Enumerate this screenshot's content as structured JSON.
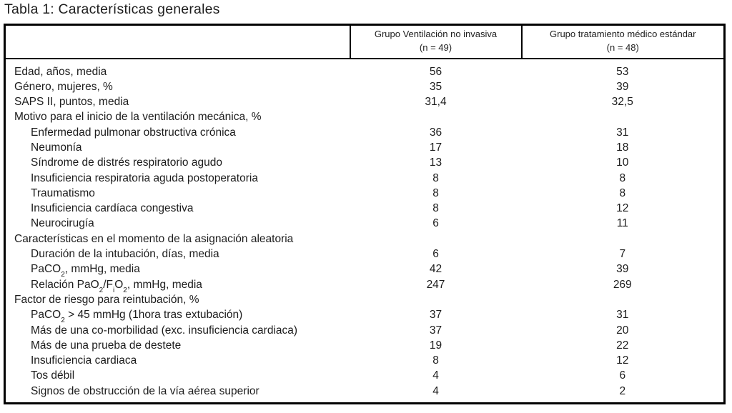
{
  "title": "Tabla 1: Características generales",
  "colors": {
    "background": "#ffffff",
    "text": "#1c1c1c",
    "border": "#000000"
  },
  "table": {
    "columns": [
      {
        "line1": "Grupo Ventilación no invasiva",
        "line2": "(n = 49)"
      },
      {
        "line1": "Grupo tratamiento médico estándar",
        "line2": "(n = 48)"
      }
    ],
    "rows": [
      {
        "label": "Edad, años, media",
        "indent": 0,
        "values": [
          "56",
          "53"
        ]
      },
      {
        "label": "Género, mujeres, %",
        "indent": 0,
        "values": [
          "35",
          "39"
        ]
      },
      {
        "label": "SAPS II, puntos, media",
        "indent": 0,
        "values": [
          "31,4",
          "32,5"
        ]
      },
      {
        "label": "Motivo para el inicio de la ventilación mecánica, %",
        "indent": 0,
        "values": [
          "",
          ""
        ]
      },
      {
        "label": "Enfermedad pulmonar obstructiva crónica",
        "indent": 1,
        "values": [
          "36",
          "31"
        ]
      },
      {
        "label": "Neumonía",
        "indent": 1,
        "values": [
          "17",
          "18"
        ]
      },
      {
        "label": "Síndrome de distrés respiratorio agudo",
        "indent": 1,
        "values": [
          "13",
          "10"
        ]
      },
      {
        "label": "Insuficiencia respiratoria aguda postoperatoria",
        "indent": 1,
        "values": [
          "8",
          "8"
        ]
      },
      {
        "label": "Traumatismo",
        "indent": 1,
        "values": [
          "8",
          "8"
        ]
      },
      {
        "label": "Insuficiencia cardíaca congestiva",
        "indent": 1,
        "values": [
          "8",
          "12"
        ]
      },
      {
        "label": "Neurocirugía",
        "indent": 1,
        "values": [
          "6",
          "11"
        ]
      },
      {
        "label": "Características en el momento de la asignación aleatoria",
        "indent": 0,
        "values": [
          "",
          ""
        ]
      },
      {
        "label": "Duración de la intubación, días, media",
        "indent": 1,
        "values": [
          "6",
          "7"
        ]
      },
      {
        "label": "PaCO_{2}, mmHg, media",
        "indent": 1,
        "values": [
          "42",
          "39"
        ]
      },
      {
        "label": "Relación PaO_{2}/F_{i}O_{2}, mmHg, media",
        "indent": 1,
        "values": [
          "247",
          "269"
        ]
      },
      {
        "label": "Factor de riesgo para reintubación, %",
        "indent": 0,
        "values": [
          "",
          ""
        ]
      },
      {
        "label": "PaCO_{2} > 45 mmHg (1hora tras extubación)",
        "indent": 1,
        "values": [
          "37",
          "31"
        ]
      },
      {
        "label": "Más de una co-morbilidad (exc. insuficiencia cardiaca)",
        "indent": 1,
        "values": [
          "37",
          "20"
        ]
      },
      {
        "label": "Más de una prueba de destete",
        "indent": 1,
        "values": [
          "19",
          "22"
        ]
      },
      {
        "label": "Insuficiencia cardiaca",
        "indent": 1,
        "values": [
          "8",
          "12"
        ]
      },
      {
        "label": "Tos débil",
        "indent": 1,
        "values": [
          "4",
          "6"
        ]
      },
      {
        "label": "Signos de obstrucción de la vía aérea superior",
        "indent": 1,
        "values": [
          "4",
          "2"
        ]
      }
    ]
  }
}
